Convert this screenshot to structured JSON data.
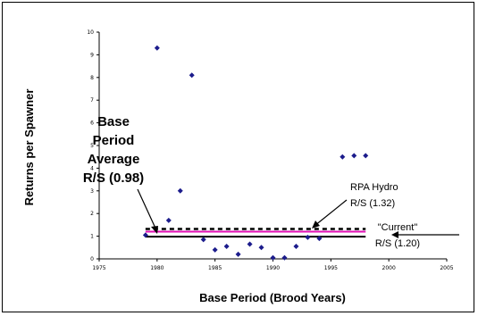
{
  "chart_data": {
    "type": "scatter",
    "xlabel": "Base Period (Brood Years)",
    "ylabel": "Returns per Spawner",
    "xlim": [
      1975,
      2005
    ],
    "ylim": [
      0,
      10
    ],
    "x_ticks": [
      "1975",
      "1980",
      "1985",
      "1990",
      "1995",
      "2000",
      "2005"
    ],
    "y_ticks": [
      "0",
      "1",
      "2",
      "3",
      "4",
      "5",
      "6",
      "7",
      "8",
      "9",
      "10"
    ],
    "grid": false,
    "marker_color": "#1c1c8c",
    "points": [
      {
        "x": 1979,
        "y": 1.05
      },
      {
        "x": 1980,
        "y": 9.3
      },
      {
        "x": 1981,
        "y": 1.7
      },
      {
        "x": 1982,
        "y": 3.0
      },
      {
        "x": 1983,
        "y": 8.1
      },
      {
        "x": 1984,
        "y": 0.85
      },
      {
        "x": 1985,
        "y": 0.4
      },
      {
        "x": 1986,
        "y": 0.55
      },
      {
        "x": 1987,
        "y": 0.2
      },
      {
        "x": 1988,
        "y": 0.65
      },
      {
        "x": 1989,
        "y": 0.5
      },
      {
        "x": 1990,
        "y": 0.05
      },
      {
        "x": 1991,
        "y": 0.05
      },
      {
        "x": 1992,
        "y": 0.55
      },
      {
        "x": 1993,
        "y": 0.95
      },
      {
        "x": 1994,
        "y": 0.9
      },
      {
        "x": 1996,
        "y": 4.5
      },
      {
        "x": 1997,
        "y": 4.55
      },
      {
        "x": 1998,
        "y": 4.55
      }
    ],
    "reference_lines": [
      {
        "name": "Base Period Average",
        "y": 0.98,
        "x_range": [
          1979,
          1998
        ],
        "color": "#000000",
        "style": "solid"
      },
      {
        "name": "Current",
        "y": 1.2,
        "x_range": [
          1979,
          1998
        ],
        "color": "#e10fb4",
        "style": "solid"
      },
      {
        "name": "RPA Hydro",
        "y": 1.32,
        "x_range": [
          1979,
          1998
        ],
        "color": "#000000",
        "style": "dashed"
      }
    ],
    "annotations": [
      {
        "lines": [
          "Base",
          "Period",
          "Average",
          "R/S (0.98)"
        ],
        "target": "Base Period Average"
      },
      {
        "lines": [
          "RPA Hydro",
          "R/S (1.32)"
        ],
        "target": "RPA Hydro"
      },
      {
        "lines": [
          "\"Current\"",
          "R/S (1.20)"
        ],
        "target": "Current"
      }
    ]
  }
}
